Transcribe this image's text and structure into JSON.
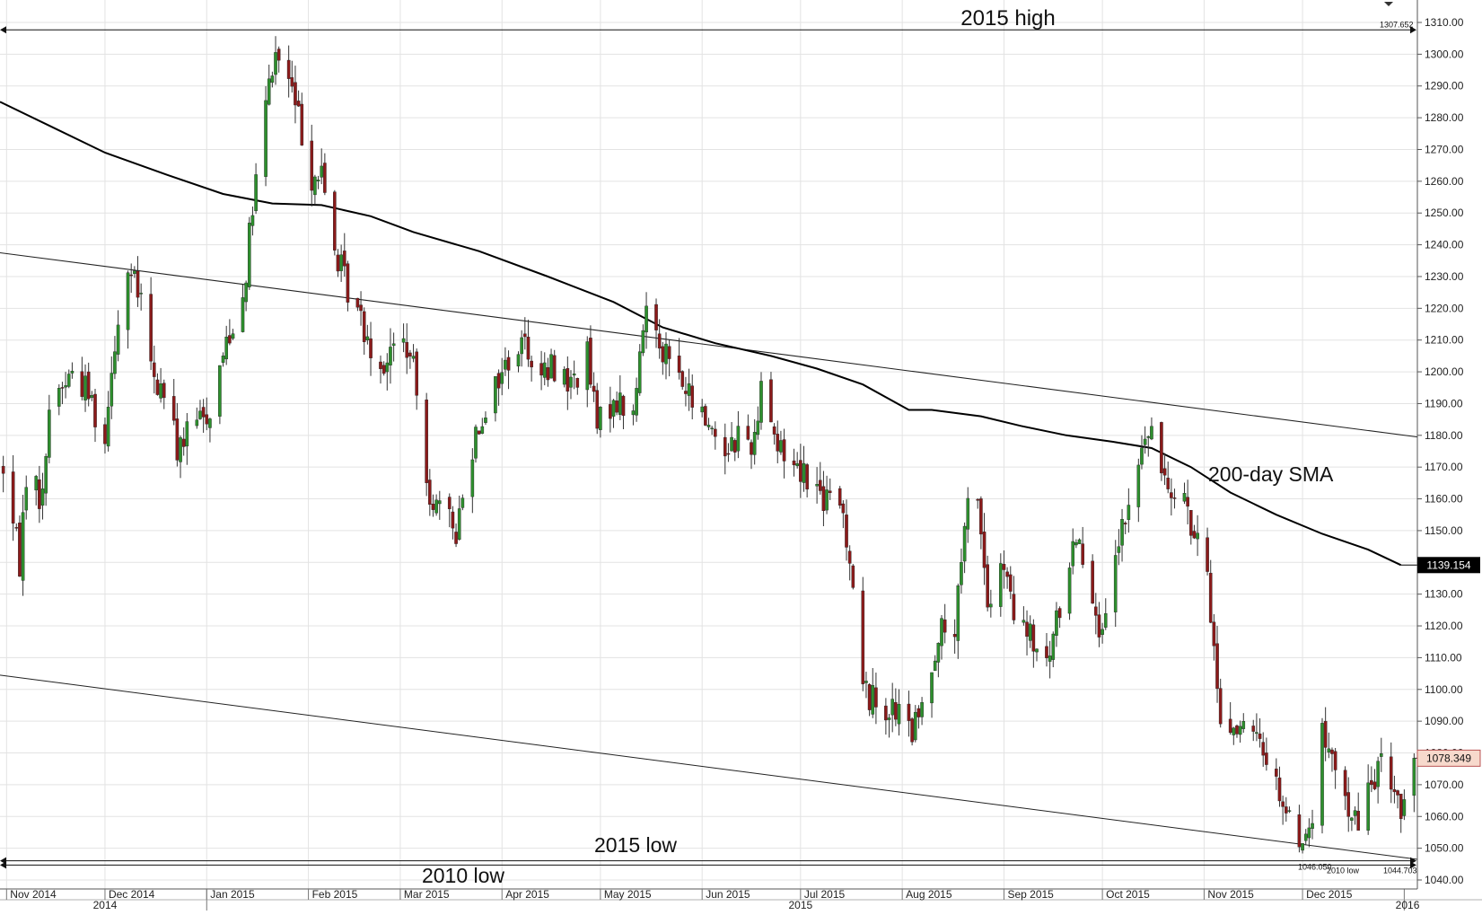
{
  "chart_data": {
    "type": "candlestick",
    "title": "",
    "xlabel": "",
    "ylabel": "",
    "ylim": [
      1040,
      1310
    ],
    "grid": true,
    "colors": {
      "up": "#2d8f2d",
      "down": "#8b1a1a",
      "wick": "#333333",
      "sma": "#000000",
      "grid": "#e3e3e3",
      "trendline": "#222222"
    },
    "y_ticks": [
      "1040.00",
      "1050.00",
      "1060.00",
      "1070.00",
      "1080.00",
      "1090.00",
      "1100.00",
      "1110.00",
      "1120.00",
      "1130.00",
      "1140.00",
      "1150.00",
      "1160.00",
      "1170.00",
      "1180.00",
      "1190.00",
      "1200.00",
      "1210.00",
      "1220.00",
      "1230.00",
      "1240.00",
      "1250.00",
      "1260.00",
      "1270.00",
      "1280.00",
      "1290.00",
      "1300.00",
      "1310.00"
    ],
    "x_month_labels": [
      {
        "label": "Nov 2014",
        "date": "2014-11-01"
      },
      {
        "label": "Dec 2014",
        "date": "2014-12-01"
      },
      {
        "label": "Jan 2015",
        "date": "2015-01-01"
      },
      {
        "label": "Feb 2015",
        "date": "2015-02-01"
      },
      {
        "label": "Mar 2015",
        "date": "2015-03-01"
      },
      {
        "label": "Apr 2015",
        "date": "2015-04-01"
      },
      {
        "label": "May 2015",
        "date": "2015-05-01"
      },
      {
        "label": "Jun 2015",
        "date": "2015-06-01"
      },
      {
        "label": "Jul 2015",
        "date": "2015-07-01"
      },
      {
        "label": "Aug 2015",
        "date": "2015-08-01"
      },
      {
        "label": "Sep 2015",
        "date": "2015-09-01"
      },
      {
        "label": "Oct 2015",
        "date": "2015-10-01"
      },
      {
        "label": "Nov 2015",
        "date": "2015-11-01"
      },
      {
        "label": "Dec 2015",
        "date": "2015-12-01"
      }
    ],
    "x_year_labels": [
      {
        "label": "2014",
        "date": "2014-12-01"
      },
      {
        "label": "2015",
        "date": "2015-07-01"
      },
      {
        "label": "2016",
        "date": "2016-01-02"
      }
    ],
    "year_dividers": [
      "2015-01-01",
      "2016-01-01"
    ],
    "x_range": [
      "2014-10-30",
      "2016-01-05"
    ],
    "price_anchors": [
      [
        "2014-10-31",
        1170
      ],
      [
        "2014-11-05",
        1140
      ],
      [
        "2014-11-07",
        1168
      ],
      [
        "2014-11-12",
        1160
      ],
      [
        "2014-11-14",
        1190
      ],
      [
        "2014-11-21",
        1200
      ],
      [
        "2014-11-26",
        1194
      ],
      [
        "2014-12-01",
        1178
      ],
      [
        "2014-12-03",
        1204
      ],
      [
        "2014-12-08",
        1232
      ],
      [
        "2014-12-12",
        1222
      ],
      [
        "2014-12-16",
        1196
      ],
      [
        "2014-12-19",
        1194
      ],
      [
        "2014-12-23",
        1176
      ],
      [
        "2014-12-29",
        1184
      ],
      [
        "2015-01-02",
        1188
      ],
      [
        "2015-01-07",
        1210
      ],
      [
        "2015-01-12",
        1224
      ],
      [
        "2015-01-16",
        1260
      ],
      [
        "2015-01-20",
        1290
      ],
      [
        "2015-01-22",
        1300
      ],
      [
        "2015-01-26",
        1292
      ],
      [
        "2015-01-29",
        1280
      ],
      [
        "2015-02-02",
        1262
      ],
      [
        "2015-02-05",
        1262
      ],
      [
        "2015-02-09",
        1238
      ],
      [
        "2015-02-13",
        1226
      ],
      [
        "2015-02-18",
        1214
      ],
      [
        "2015-02-23",
        1202
      ],
      [
        "2015-02-26",
        1206
      ],
      [
        "2015-03-02",
        1210
      ],
      [
        "2015-03-05",
        1200
      ],
      [
        "2015-03-10",
        1162
      ],
      [
        "2015-03-13",
        1156
      ],
      [
        "2015-03-18",
        1150
      ],
      [
        "2015-03-24",
        1182
      ],
      [
        "2015-03-30",
        1196
      ],
      [
        "2015-04-03",
        1204
      ],
      [
        "2015-04-08",
        1210
      ],
      [
        "2015-04-13",
        1198
      ],
      [
        "2015-04-17",
        1202
      ],
      [
        "2015-04-22",
        1196
      ],
      [
        "2015-04-27",
        1205
      ],
      [
        "2015-04-30",
        1182
      ],
      [
        "2015-05-05",
        1192
      ],
      [
        "2015-05-11",
        1186
      ],
      [
        "2015-05-15",
        1222
      ],
      [
        "2015-05-20",
        1208
      ],
      [
        "2015-05-26",
        1196
      ],
      [
        "2015-05-29",
        1190
      ],
      [
        "2015-06-03",
        1184
      ],
      [
        "2015-06-08",
        1176
      ],
      [
        "2015-06-12",
        1180
      ],
      [
        "2015-06-17",
        1178
      ],
      [
        "2015-06-19",
        1200
      ],
      [
        "2015-06-24",
        1176
      ],
      [
        "2015-06-29",
        1172
      ],
      [
        "2015-07-03",
        1168
      ],
      [
        "2015-07-08",
        1160
      ],
      [
        "2015-07-14",
        1156
      ],
      [
        "2015-07-17",
        1134
      ],
      [
        "2015-07-20",
        1100
      ],
      [
        "2015-07-24",
        1096
      ],
      [
        "2015-07-28",
        1094
      ],
      [
        "2015-07-31",
        1092
      ],
      [
        "2015-08-04",
        1086
      ],
      [
        "2015-08-07",
        1094
      ],
      [
        "2015-08-12",
        1118
      ],
      [
        "2015-08-17",
        1118
      ],
      [
        "2015-08-21",
        1158
      ],
      [
        "2015-08-24",
        1162
      ],
      [
        "2015-08-27",
        1126
      ],
      [
        "2015-09-01",
        1138
      ],
      [
        "2015-09-04",
        1122
      ],
      [
        "2015-09-09",
        1116
      ],
      [
        "2015-09-14",
        1106
      ],
      [
        "2015-09-18",
        1126
      ],
      [
        "2015-09-23",
        1150
      ],
      [
        "2015-09-28",
        1132
      ],
      [
        "2015-10-01",
        1114
      ],
      [
        "2015-10-06",
        1146
      ],
      [
        "2015-10-09",
        1156
      ],
      [
        "2015-10-14",
        1180
      ],
      [
        "2015-10-16",
        1178
      ],
      [
        "2015-10-21",
        1166
      ],
      [
        "2015-10-26",
        1162
      ],
      [
        "2015-10-28",
        1150
      ],
      [
        "2015-11-02",
        1136
      ],
      [
        "2015-11-06",
        1090
      ],
      [
        "2015-11-11",
        1088
      ],
      [
        "2015-11-16",
        1084
      ],
      [
        "2015-11-19",
        1082
      ],
      [
        "2015-11-24",
        1068
      ],
      [
        "2015-11-27",
        1058
      ],
      [
        "2015-12-02",
        1052
      ],
      [
        "2015-12-04",
        1060
      ],
      [
        "2015-12-07",
        1086
      ],
      [
        "2015-12-11",
        1072
      ],
      [
        "2015-12-15",
        1064
      ],
      [
        "2015-12-18",
        1056
      ],
      [
        "2015-12-21",
        1068
      ],
      [
        "2015-12-24",
        1076
      ],
      [
        "2015-12-29",
        1070
      ],
      [
        "2015-12-31",
        1062
      ],
      [
        "2016-01-04",
        1078
      ]
    ],
    "sma_name": "200-day SMA",
    "sma_points": [
      [
        "2014-10-30",
        1285
      ],
      [
        "2014-11-15",
        1277
      ],
      [
        "2014-12-01",
        1269
      ],
      [
        "2014-12-20",
        1262
      ],
      [
        "2015-01-06",
        1256
      ],
      [
        "2015-01-21",
        1253
      ],
      [
        "2015-02-05",
        1252.5
      ],
      [
        "2015-02-20",
        1249
      ],
      [
        "2015-03-05",
        1244
      ],
      [
        "2015-03-25",
        1238
      ],
      [
        "2015-04-15",
        1230
      ],
      [
        "2015-05-05",
        1222
      ],
      [
        "2015-05-20",
        1214
      ],
      [
        "2015-06-05",
        1209
      ],
      [
        "2015-06-22",
        1205
      ],
      [
        "2015-07-06",
        1201
      ],
      [
        "2015-07-20",
        1196
      ],
      [
        "2015-08-03",
        1188
      ],
      [
        "2015-08-10",
        1188
      ],
      [
        "2015-08-25",
        1186
      ],
      [
        "2015-09-06",
        1183
      ],
      [
        "2015-09-20",
        1180
      ],
      [
        "2015-10-04",
        1178
      ],
      [
        "2015-10-16",
        1176
      ],
      [
        "2015-10-28",
        1170
      ],
      [
        "2015-11-09",
        1162
      ],
      [
        "2015-11-23",
        1155
      ],
      [
        "2015-12-07",
        1149
      ],
      [
        "2015-12-21",
        1144
      ],
      [
        "2015-12-31",
        1139.154
      ]
    ],
    "sma_last_value": "1139.154",
    "last_price": "1078.349",
    "trendlines": [
      {
        "from": [
          "2014-10-30",
          1237.5
        ],
        "to": [
          "2016-01-05",
          1179.5
        ]
      },
      {
        "from": [
          "2014-10-30",
          1104.5
        ],
        "to": [
          "2016-01-05",
          1046.5
        ]
      }
    ],
    "levels": [
      {
        "name": "2015 high",
        "value": 1307.652,
        "value_label": "1307.652"
      },
      {
        "name": "2015 low",
        "value": 1046.05,
        "value_label": "1046.050"
      },
      {
        "name": "2010 low",
        "value": 1044.703,
        "value_label": "1044.703"
      }
    ],
    "annotations": {
      "high_2015": "2015 high",
      "low_2015": "2015 low",
      "low_2010": "2010 low",
      "sma": "200-day SMA",
      "low_2010_small": "2010 low"
    }
  }
}
